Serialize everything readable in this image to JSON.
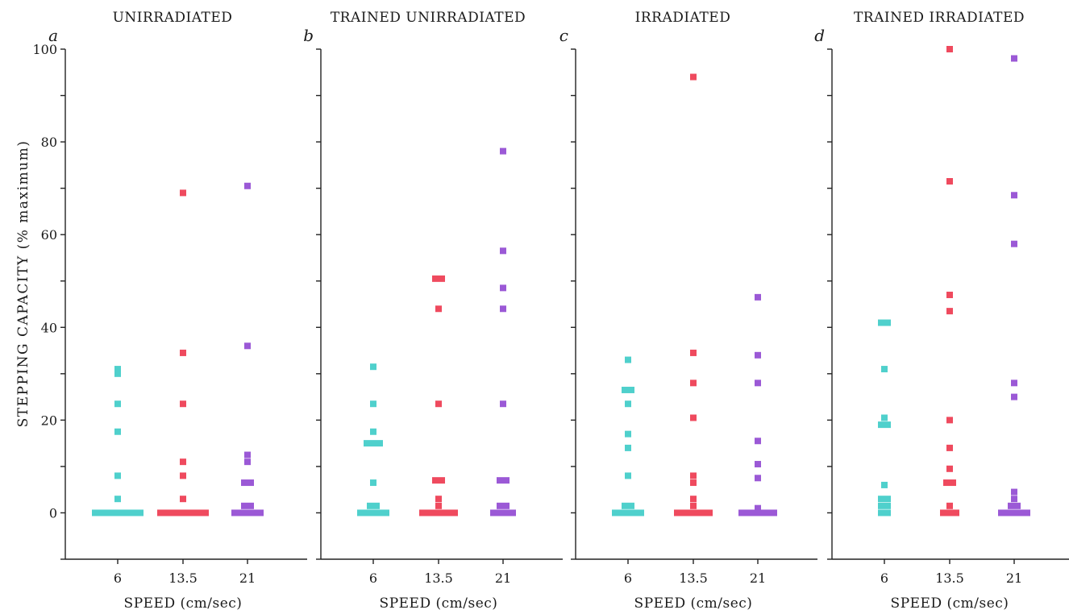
{
  "chart_data": {
    "type": "scatter",
    "ylabel": "STEPPING  CAPACITY  (% maximum)",
    "xlabel": "SPEED (cm/sec)",
    "categories": [
      "6",
      "13.5",
      "21"
    ],
    "ylim": [
      -10,
      100
    ],
    "yticks": [
      "0",
      "20",
      "40",
      "60",
      "80",
      "100"
    ],
    "grid": false,
    "colors": {
      "6": "#4fd0cc",
      "13.5": "#ef4a5e",
      "21": "#9b59d6"
    },
    "panels": [
      {
        "letter": "a",
        "title": "UNIRRADIATED",
        "series": [
          {
            "category": "6",
            "values": [
              31,
              30,
              23.5,
              17.5,
              8,
              3,
              0,
              0,
              0,
              0,
              0,
              0,
              0,
              0
            ]
          },
          {
            "category": "13.5",
            "values": [
              69,
              34.5,
              23.5,
              11,
              8,
              3,
              0,
              0,
              0,
              0,
              0,
              0,
              0,
              0
            ]
          },
          {
            "category": "21",
            "values": [
              70.5,
              36,
              12.5,
              11,
              6.5,
              6.5,
              1.5,
              1.5,
              0,
              0,
              0,
              0,
              0
            ]
          }
        ]
      },
      {
        "letter": "b",
        "title": "TRAINED UNIRRADIATED",
        "series": [
          {
            "category": "6",
            "values": [
              31.5,
              23.5,
              17.5,
              15,
              15,
              15,
              6.5,
              1.5,
              1.5,
              0,
              0,
              0,
              0,
              0
            ]
          },
          {
            "category": "13.5",
            "values": [
              50.5,
              50.5,
              44,
              23.5,
              7,
              7,
              3,
              1.5,
              0,
              0,
              0,
              0,
              0,
              0
            ]
          },
          {
            "category": "21",
            "values": [
              78,
              56.5,
              48.5,
              44,
              23.5,
              7,
              7,
              1.5,
              1.5,
              0,
              0,
              0,
              0
            ]
          }
        ]
      },
      {
        "letter": "c",
        "title": "IRRADIATED",
        "series": [
          {
            "category": "6",
            "values": [
              33,
              26.5,
              26.5,
              23.5,
              17,
              14,
              8,
              1.5,
              1.5,
              0,
              0,
              0,
              0,
              0
            ]
          },
          {
            "category": "13.5",
            "values": [
              94,
              34.5,
              28,
              20.5,
              8,
              6.5,
              3,
              1.5,
              0,
              0,
              0,
              0,
              0,
              0
            ]
          },
          {
            "category": "21",
            "values": [
              46.5,
              34,
              28,
              15.5,
              10.5,
              7.5,
              1,
              0,
              0,
              0,
              0,
              0,
              0
            ]
          }
        ]
      },
      {
        "letter": "d",
        "title": "TRAINED IRRADIATED",
        "series": [
          {
            "category": "6",
            "values": [
              41,
              41,
              31,
              20.5,
              19,
              19,
              6,
              3,
              3,
              1.5,
              1.5,
              0,
              0
            ]
          },
          {
            "category": "13.5",
            "values": [
              100,
              71.5,
              47,
              43.5,
              20,
              14,
              9.5,
              6.5,
              6.5,
              1.5,
              0,
              0,
              0
            ]
          },
          {
            "category": "21",
            "values": [
              98,
              68.5,
              58,
              28,
              25,
              4.5,
              3,
              1.5,
              1.5,
              0,
              0,
              0,
              0,
              0
            ]
          }
        ]
      }
    ]
  }
}
